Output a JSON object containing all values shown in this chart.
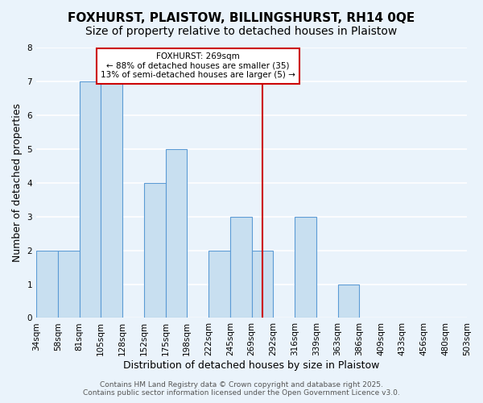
{
  "title": "FOXHURST, PLAISTOW, BILLINGSHURST, RH14 0QE",
  "subtitle": "Size of property relative to detached houses in Plaistow",
  "xlabel": "Distribution of detached houses by size in Plaistow",
  "ylabel": "Number of detached properties",
  "bin_labels": [
    "34sqm",
    "58sqm",
    "81sqm",
    "105sqm",
    "128sqm",
    "152sqm",
    "175sqm",
    "198sqm",
    "222sqm",
    "245sqm",
    "269sqm",
    "292sqm",
    "316sqm",
    "339sqm",
    "363sqm",
    "386sqm",
    "409sqm",
    "433sqm",
    "456sqm",
    "480sqm",
    "503sqm"
  ],
  "bar_values": [
    2,
    2,
    7,
    7,
    0,
    4,
    5,
    0,
    2,
    3,
    2,
    0,
    3,
    0,
    1,
    0,
    0,
    0,
    0,
    0
  ],
  "bar_color": "#c8dff0",
  "bar_edge_color": "#5b9bd5",
  "vline_x": 10.5,
  "vline_color": "#cc0000",
  "ylim": [
    0,
    8
  ],
  "yticks": [
    0,
    1,
    2,
    3,
    4,
    5,
    6,
    7,
    8
  ],
  "annotation_title": "FOXHURST: 269sqm",
  "annotation_line1": "← 88% of detached houses are smaller (35)",
  "annotation_line2": "13% of semi-detached houses are larger (5) →",
  "annotation_box_color": "#ffffff",
  "annotation_box_edge": "#cc0000",
  "footer_line1": "Contains HM Land Registry data © Crown copyright and database right 2025.",
  "footer_line2": "Contains public sector information licensed under the Open Government Licence v3.0.",
  "background_color": "#eaf3fb",
  "grid_color": "#ffffff",
  "title_fontsize": 11,
  "subtitle_fontsize": 10,
  "axis_label_fontsize": 9,
  "tick_fontsize": 7.5,
  "footer_fontsize": 6.5
}
